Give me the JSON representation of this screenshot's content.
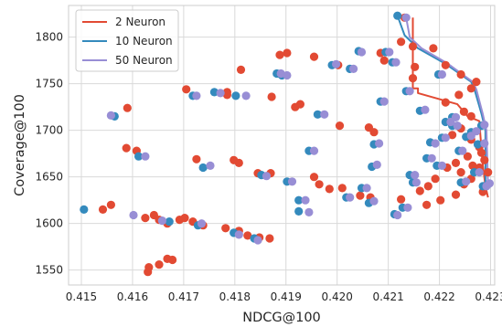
{
  "chart_data": {
    "type": "scatter",
    "title": "",
    "xlabel": "NDCG@100",
    "ylabel": "Coverage@100",
    "xlim": [
      0.41475,
      0.42308
    ],
    "ylim": [
      1534,
      1834
    ],
    "grid": true,
    "legend_position": "top-left",
    "x_ticks": [
      "0.415",
      "0.416",
      "0.417",
      "0.418",
      "0.419",
      "0.420",
      "0.421",
      "0.422",
      "0.423"
    ],
    "x_tick_values": [
      0.415,
      0.416,
      0.417,
      0.418,
      0.419,
      0.42,
      0.421,
      0.422,
      0.423
    ],
    "y_ticks": [
      "1550",
      "1600",
      "1650",
      "1700",
      "1750",
      "1800"
    ],
    "y_tick_values": [
      1550,
      1600,
      1650,
      1700,
      1750,
      1800
    ],
    "series": [
      {
        "name": "2 Neuron",
        "color": "#e24a33",
        "points": [
          [
            0.4163,
            1548
          ],
          [
            0.41632,
            1553
          ],
          [
            0.41652,
            1556
          ],
          [
            0.41668,
            1562
          ],
          [
            0.41678,
            1561
          ],
          [
            0.41542,
            1615
          ],
          [
            0.41558,
            1620
          ],
          [
            0.41625,
            1606
          ],
          [
            0.41642,
            1609
          ],
          [
            0.41652,
            1604
          ],
          [
            0.41668,
            1600
          ],
          [
            0.41692,
            1604
          ],
          [
            0.41702,
            1606
          ],
          [
            0.41718,
            1602
          ],
          [
            0.41738,
            1598
          ],
          [
            0.41782,
            1595
          ],
          [
            0.41808,
            1592
          ],
          [
            0.41825,
            1587
          ],
          [
            0.41848,
            1585
          ],
          [
            0.41868,
            1584
          ],
          [
            0.41588,
            1681
          ],
          [
            0.41608,
            1678
          ],
          [
            0.41725,
            1669
          ],
          [
            0.41798,
            1668
          ],
          [
            0.41808,
            1665
          ],
          [
            0.41845,
            1654
          ],
          [
            0.4187,
            1654
          ],
          [
            0.41955,
            1650
          ],
          [
            0.41965,
            1642
          ],
          [
            0.41985,
            1637
          ],
          [
            0.4201,
            1638
          ],
          [
            0.42045,
            1630
          ],
          [
            0.42065,
            1628
          ],
          [
            0.42125,
            1626
          ],
          [
            0.42175,
            1620
          ],
          [
            0.42202,
            1625
          ],
          [
            0.42232,
            1631
          ],
          [
            0.42248,
            1642
          ],
          [
            0.42262,
            1648
          ],
          [
            0.42285,
            1634
          ],
          [
            0.4159,
            1724
          ],
          [
            0.41705,
            1744
          ],
          [
            0.41785,
            1741
          ],
          [
            0.41785,
            1738
          ],
          [
            0.41872,
            1736
          ],
          [
            0.41918,
            1725
          ],
          [
            0.41928,
            1728
          ],
          [
            0.42005,
            1705
          ],
          [
            0.42062,
            1703
          ],
          [
            0.42072,
            1698
          ],
          [
            0.41812,
            1765
          ],
          [
            0.41888,
            1781
          ],
          [
            0.41902,
            1783
          ],
          [
            0.41955,
            1779
          ],
          [
            0.42002,
            1770
          ],
          [
            0.42085,
            1783
          ],
          [
            0.42092,
            1775
          ],
          [
            0.42148,
            1790
          ],
          [
            0.42152,
            1768
          ],
          [
            0.42148,
            1756
          ],
          [
            0.42125,
            1795
          ],
          [
            0.42132,
            1821
          ],
          [
            0.42188,
            1788
          ],
          [
            0.42212,
            1770
          ],
          [
            0.42242,
            1760
          ],
          [
            0.42262,
            1745
          ],
          [
            0.42272,
            1752
          ],
          [
            0.42238,
            1738
          ],
          [
            0.42212,
            1730
          ],
          [
            0.42248,
            1720
          ],
          [
            0.42262,
            1715
          ],
          [
            0.42242,
            1702
          ],
          [
            0.42225,
            1695
          ],
          [
            0.42262,
            1690
          ],
          [
            0.42278,
            1682
          ],
          [
            0.42255,
            1672
          ],
          [
            0.42232,
            1665
          ],
          [
            0.42278,
            1660
          ],
          [
            0.42288,
            1668
          ],
          [
            0.42295,
            1655
          ],
          [
            0.42242,
            1655
          ],
          [
            0.42215,
            1660
          ],
          [
            0.42192,
            1648
          ],
          [
            0.42178,
            1640
          ],
          [
            0.42162,
            1635
          ],
          [
            0.42265,
            1662
          ],
          [
            0.42282,
            1676
          ]
        ],
        "line": [
          [
            0.42148,
            1821
          ],
          [
            0.42148,
            1745
          ],
          [
            0.42158,
            1745
          ],
          [
            0.42158,
            1740
          ],
          [
            0.42235,
            1728
          ],
          [
            0.42255,
            1715
          ],
          [
            0.42278,
            1710
          ],
          [
            0.42282,
            1680
          ],
          [
            0.42285,
            1662
          ],
          [
            0.4229,
            1640
          ],
          [
            0.42295,
            1628
          ]
        ]
      },
      {
        "name": "10 Neuron",
        "color": "#348abd",
        "points": [
          [
            0.41505,
            1615
          ],
          [
            0.41565,
            1715
          ],
          [
            0.41612,
            1672
          ],
          [
            0.41672,
            1602
          ],
          [
            0.41728,
            1598
          ],
          [
            0.41738,
            1660
          ],
          [
            0.41718,
            1737
          ],
          [
            0.4176,
            1741
          ],
          [
            0.41802,
            1737
          ],
          [
            0.41798,
            1590
          ],
          [
            0.41838,
            1584
          ],
          [
            0.41852,
            1652
          ],
          [
            0.41882,
            1761
          ],
          [
            0.41892,
            1759
          ],
          [
            0.41902,
            1645
          ],
          [
            0.41925,
            1625
          ],
          [
            0.41925,
            1613
          ],
          [
            0.41945,
            1678
          ],
          [
            0.41962,
            1717
          ],
          [
            0.4199,
            1770
          ],
          [
            0.42025,
            1766
          ],
          [
            0.42018,
            1628
          ],
          [
            0.42042,
            1785
          ],
          [
            0.42048,
            1638
          ],
          [
            0.42062,
            1622
          ],
          [
            0.42068,
            1661
          ],
          [
            0.42072,
            1685
          ],
          [
            0.42085,
            1731
          ],
          [
            0.42095,
            1784
          ],
          [
            0.42108,
            1773
          ],
          [
            0.42112,
            1610
          ],
          [
            0.42118,
            1823
          ],
          [
            0.42128,
            1617
          ],
          [
            0.42135,
            1742
          ],
          [
            0.42142,
            1652
          ],
          [
            0.42148,
            1644
          ],
          [
            0.42162,
            1721
          ],
          [
            0.42175,
            1670
          ],
          [
            0.42182,
            1687
          ],
          [
            0.42195,
            1662
          ],
          [
            0.42205,
            1692
          ],
          [
            0.42212,
            1709
          ],
          [
            0.42225,
            1714
          ],
          [
            0.42238,
            1678
          ],
          [
            0.42242,
            1644
          ],
          [
            0.42252,
            1693
          ],
          [
            0.42262,
            1698
          ],
          [
            0.42268,
            1655
          ],
          [
            0.42275,
            1685
          ],
          [
            0.42282,
            1705
          ],
          [
            0.42285,
            1640
          ],
          [
            0.42295,
            1642
          ],
          [
            0.42225,
            1705
          ],
          [
            0.42198,
            1760
          ]
        ],
        "line": [
          [
            0.42118,
            1823
          ],
          [
            0.42132,
            1802
          ],
          [
            0.42158,
            1788
          ],
          [
            0.4221,
            1772
          ],
          [
            0.42262,
            1752
          ],
          [
            0.42268,
            1745
          ],
          [
            0.42282,
            1718
          ],
          [
            0.4229,
            1700
          ],
          [
            0.4229,
            1632
          ]
        ]
      },
      {
        "name": "50 Neuron",
        "color": "#988ed5",
        "points": [
          [
            0.41558,
            1716
          ],
          [
            0.41625,
            1672
          ],
          [
            0.41602,
            1609
          ],
          [
            0.41658,
            1603
          ],
          [
            0.41735,
            1600
          ],
          [
            0.41752,
            1662
          ],
          [
            0.41725,
            1737
          ],
          [
            0.41772,
            1740
          ],
          [
            0.41822,
            1737
          ],
          [
            0.41808,
            1588
          ],
          [
            0.41845,
            1582
          ],
          [
            0.41862,
            1651
          ],
          [
            0.4189,
            1761
          ],
          [
            0.41902,
            1759
          ],
          [
            0.41912,
            1645
          ],
          [
            0.41938,
            1625
          ],
          [
            0.41945,
            1612
          ],
          [
            0.41955,
            1678
          ],
          [
            0.41975,
            1717
          ],
          [
            0.41998,
            1771
          ],
          [
            0.42032,
            1766
          ],
          [
            0.42025,
            1628
          ],
          [
            0.42048,
            1784
          ],
          [
            0.42058,
            1638
          ],
          [
            0.42072,
            1624
          ],
          [
            0.42078,
            1663
          ],
          [
            0.42082,
            1686
          ],
          [
            0.42092,
            1731
          ],
          [
            0.42102,
            1784
          ],
          [
            0.42115,
            1773
          ],
          [
            0.42118,
            1609
          ],
          [
            0.42135,
            1821
          ],
          [
            0.42138,
            1617
          ],
          [
            0.42142,
            1742
          ],
          [
            0.42152,
            1652
          ],
          [
            0.42155,
            1644
          ],
          [
            0.42172,
            1722
          ],
          [
            0.42185,
            1670
          ],
          [
            0.42192,
            1686
          ],
          [
            0.42205,
            1662
          ],
          [
            0.42212,
            1692
          ],
          [
            0.42222,
            1709
          ],
          [
            0.42232,
            1714
          ],
          [
            0.42245,
            1678
          ],
          [
            0.42252,
            1645
          ],
          [
            0.42262,
            1694
          ],
          [
            0.42272,
            1699
          ],
          [
            0.42278,
            1655
          ],
          [
            0.42288,
            1686
          ],
          [
            0.42288,
            1706
          ],
          [
            0.42292,
            1640
          ],
          [
            0.42298,
            1643
          ],
          [
            0.42235,
            1705
          ],
          [
            0.42205,
            1760
          ]
        ],
        "line": [
          [
            0.42135,
            1821
          ],
          [
            0.42142,
            1800
          ],
          [
            0.42165,
            1788
          ],
          [
            0.42215,
            1772
          ],
          [
            0.42265,
            1752
          ],
          [
            0.42272,
            1744
          ],
          [
            0.42285,
            1717
          ],
          [
            0.42292,
            1700
          ],
          [
            0.42295,
            1640
          ]
        ]
      }
    ]
  }
}
